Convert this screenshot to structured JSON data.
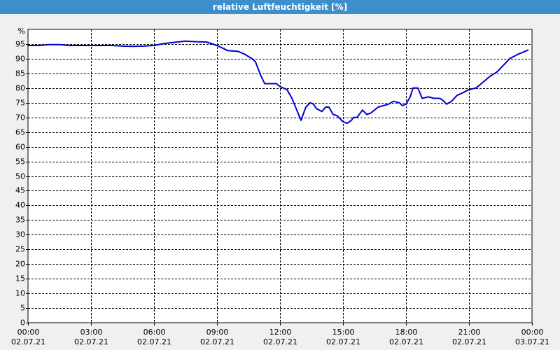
{
  "chart_data": {
    "type": "line",
    "title": "relative Luftfeuchtigkeit [%]",
    "y_unit_label": "%",
    "x": [
      0,
      0.5,
      1,
      1.5,
      2,
      3,
      4,
      4.5,
      5,
      5.5,
      6,
      6.5,
      7,
      7.5,
      8,
      8.5,
      9,
      9.3,
      9.5,
      10,
      10.33,
      10.67,
      10.83,
      11.07,
      11.27,
      11.5,
      11.83,
      12,
      12.33,
      12.57,
      12.77,
      13,
      13.23,
      13.43,
      13.6,
      13.73,
      14,
      14.17,
      14.33,
      14.53,
      14.73,
      15,
      15.2,
      15.4,
      15.5,
      15.67,
      15.93,
      16.13,
      16.33,
      16.67,
      16.93,
      17.17,
      17.4,
      17.67,
      17.83,
      18,
      18.2,
      18.33,
      18.57,
      18.77,
      19.07,
      19.33,
      19.6,
      19.73,
      19.93,
      20.17,
      20.43,
      20.73,
      21,
      21.33,
      21.67,
      22,
      22.33,
      22.67,
      22.93,
      23.33,
      23.83
    ],
    "series": [
      {
        "name": "relative Luftfeuchtigkeit",
        "color": "#0000cc",
        "values": [
          94.5,
          94.5,
          94.8,
          94.8,
          94.5,
          94.5,
          94.5,
          94.3,
          94.2,
          94.3,
          94.5,
          95.2,
          95.6,
          96,
          95.8,
          95.7,
          94.5,
          93.5,
          92.8,
          92.5,
          91.5,
          90,
          89,
          84.5,
          81.5,
          81.5,
          81.5,
          80.5,
          79.5,
          76.5,
          73,
          69,
          73.5,
          75,
          74.5,
          73,
          72,
          73.5,
          73.5,
          71,
          70.5,
          68.5,
          68,
          69,
          70,
          70,
          72.5,
          71,
          71.5,
          73.5,
          74,
          74.5,
          75.5,
          75,
          74,
          74.5,
          77,
          80,
          80,
          76.5,
          77,
          76.5,
          76.5,
          76,
          74.5,
          75.5,
          77.5,
          78.5,
          79.5,
          80,
          82,
          84,
          85.5,
          88,
          90,
          91.5,
          93
        ]
      }
    ],
    "xlim": [
      0,
      24
    ],
    "xticks": [
      {
        "value": 0,
        "label": "00:00\n02.07.21"
      },
      {
        "value": 3,
        "label": "03:00\n02.07.21"
      },
      {
        "value": 6,
        "label": "06:00\n02.07.21"
      },
      {
        "value": 9,
        "label": "09:00\n02.07.21"
      },
      {
        "value": 12,
        "label": "12:00\n02.07.21"
      },
      {
        "value": 15,
        "label": "15:00\n02.07.21"
      },
      {
        "value": 18,
        "label": "18:00\n02.07.21"
      },
      {
        "value": 21,
        "label": "21:00\n02.07.21"
      },
      {
        "value": 24,
        "label": "00:00\n03.07.21"
      }
    ],
    "ylim": [
      0,
      100
    ],
    "yticks": [
      0,
      5,
      10,
      15,
      20,
      25,
      30,
      35,
      40,
      45,
      50,
      55,
      60,
      65,
      70,
      75,
      80,
      85,
      90,
      95
    ],
    "grid": true
  }
}
